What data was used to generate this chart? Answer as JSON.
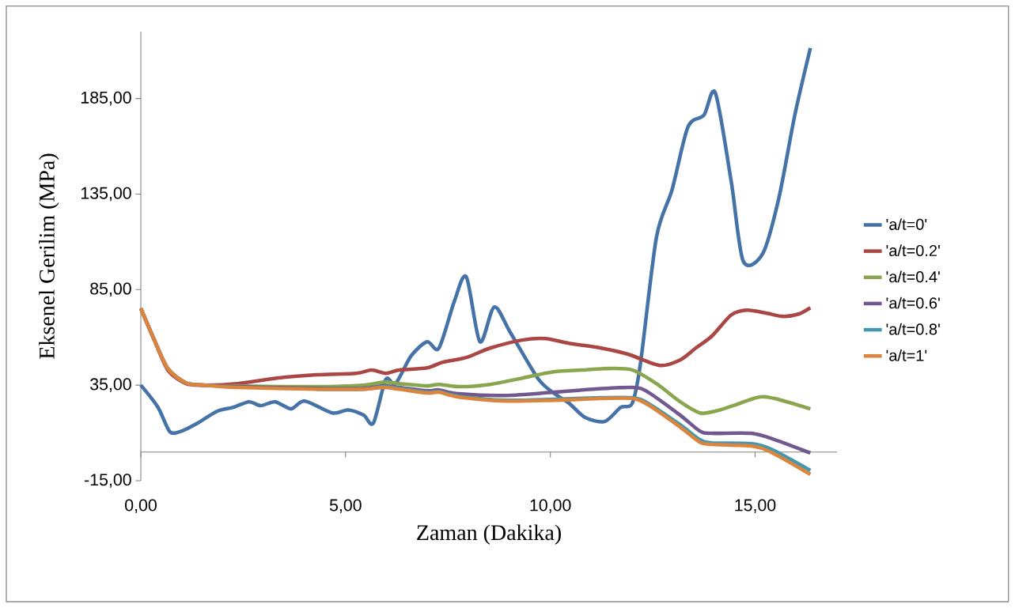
{
  "chart_data": {
    "type": "line",
    "xlabel": "Zaman (Dakika)",
    "ylabel": "Eksenel Gerilim (MPa)",
    "xlim": [
      0,
      17
    ],
    "ylim": [
      -15,
      220
    ],
    "xticks": [
      {
        "value": 0,
        "label": "0,00"
      },
      {
        "value": 5,
        "label": "5,00"
      },
      {
        "value": 10,
        "label": "10,00"
      },
      {
        "value": 15,
        "label": "15,00"
      }
    ],
    "yticks": [
      {
        "value": -15,
        "label": "-15,00"
      },
      {
        "value": 35,
        "label": "35,00"
      },
      {
        "value": 85,
        "label": "85,00"
      },
      {
        "value": 135,
        "label": "135,00"
      },
      {
        "value": 185,
        "label": "185,00"
      }
    ],
    "legend": "right",
    "series": [
      {
        "name": "'a/t=0'",
        "color": "#4572a7",
        "x": [
          0,
          0.42,
          0.71,
          1.0,
          1.39,
          1.87,
          2.26,
          2.64,
          2.93,
          3.28,
          3.67,
          4.0,
          4.67,
          5.06,
          5.44,
          5.68,
          5.98,
          6.22,
          6.6,
          6.99,
          7.28,
          7.66,
          7.95,
          8.28,
          8.63,
          9.02,
          9.69,
          10.08,
          10.46,
          10.85,
          11.33,
          11.72,
          12.0,
          12.2,
          12.59,
          12.97,
          13.36,
          13.75,
          14.03,
          14.42,
          14.71,
          15.19,
          15.58,
          15.97,
          16.35
        ],
        "values": [
          35.0,
          23.4,
          10.6,
          11.0,
          15.2,
          21.4,
          23.4,
          26.3,
          24.3,
          26.3,
          22.6,
          26.7,
          20.5,
          22.0,
          19.3,
          15.2,
          37.9,
          35.8,
          50.3,
          57.7,
          54.4,
          79.2,
          91.6,
          57.7,
          75.9,
          62.7,
          38.7,
          30.9,
          25.5,
          18.1,
          16.0,
          23.4,
          25.5,
          46.2,
          112.3,
          137.1,
          170.1,
          176.3,
          187.9,
          141.2,
          99.9,
          104.0,
          132.9,
          176.3,
          211.4
        ]
      },
      {
        "name": "'a/t=0.2'",
        "color": "#aa4643",
        "x": [
          0,
          0.33,
          0.66,
          1.1,
          1.58,
          2.36,
          3.32,
          4.29,
          5.25,
          5.64,
          5.98,
          6.31,
          6.99,
          7.37,
          7.95,
          8.53,
          9.31,
          9.88,
          10.46,
          11.24,
          11.91,
          12.68,
          13.17,
          13.55,
          13.94,
          14.42,
          14.81,
          15.29,
          15.68,
          16.06,
          16.35
        ],
        "values": [
          75.1,
          58.6,
          42.9,
          35.8,
          35.0,
          35.8,
          38.7,
          40.4,
          41.2,
          42.9,
          41.2,
          42.9,
          44.1,
          47.0,
          49.5,
          54.4,
          58.6,
          59.4,
          56.9,
          54.4,
          51.1,
          45.3,
          48.2,
          54.4,
          60.6,
          71.8,
          74.3,
          72.6,
          71.0,
          72.2,
          75.5
        ]
      },
      {
        "name": "'a/t=0.4'",
        "color": "#89a54e",
        "x": [
          0,
          0.33,
          0.66,
          1.1,
          1.58,
          2.36,
          4.29,
          5.44,
          5.93,
          6.31,
          6.99,
          7.28,
          7.76,
          8.53,
          9.31,
          10.08,
          10.75,
          11.43,
          12.01,
          12.59,
          13.17,
          13.65,
          14.03,
          14.52,
          15.09,
          15.48,
          16.35
        ],
        "values": [
          75.1,
          58.6,
          43.7,
          36.2,
          35.0,
          34.6,
          34.2,
          35.0,
          36.6,
          35.8,
          34.6,
          35.4,
          34.2,
          35.4,
          38.7,
          42.0,
          42.9,
          43.7,
          42.9,
          35.8,
          26.3,
          20.5,
          21.4,
          24.7,
          28.8,
          28.0,
          22.6
        ]
      },
      {
        "name": "'a/t=0.6'",
        "color": "#71588f",
        "x": [
          0,
          0.33,
          0.66,
          1.1,
          1.58,
          2.36,
          4.29,
          5.44,
          5.93,
          6.31,
          6.99,
          7.28,
          7.76,
          8.92,
          10.08,
          11.04,
          12.01,
          12.39,
          13.17,
          13.65,
          13.94,
          14.9,
          15.48,
          16.35
        ],
        "values": [
          75.1,
          58.6,
          43.7,
          36.2,
          35.0,
          34.2,
          33.3,
          33.3,
          34.6,
          33.8,
          32.1,
          32.5,
          30.5,
          29.6,
          31.3,
          32.9,
          33.8,
          31.3,
          19.3,
          11.0,
          9.8,
          9.8,
          6.5,
          -0.5
        ]
      },
      {
        "name": "'a/t=0.8'",
        "color": "#4198af",
        "x": [
          4.29,
          5.44,
          5.93,
          6.31,
          6.99,
          7.28,
          7.76,
          8.92,
          10.08,
          11.24,
          12.01,
          12.39,
          13.17,
          13.65,
          13.94,
          14.9,
          15.39,
          16.35
        ],
        "values": [
          32.9,
          32.9,
          34.2,
          33.3,
          31.3,
          31.7,
          29.2,
          27.1,
          27.6,
          28.4,
          28.4,
          25.5,
          14.3,
          6.5,
          4.8,
          4.4,
          1.5,
          -9.6
        ]
      },
      {
        "name": "'a/t=1'",
        "color": "#db843d",
        "x": [
          0,
          0.33,
          0.66,
          1.1,
          1.58,
          2.36,
          4.29,
          5.44,
          5.93,
          6.31,
          6.99,
          7.28,
          7.76,
          8.92,
          10.08,
          11.24,
          12.01,
          12.39,
          13.17,
          13.65,
          13.94,
          14.9,
          15.39,
          16.35
        ],
        "values": [
          75.1,
          58.6,
          43.7,
          36.2,
          35.0,
          33.8,
          32.9,
          32.9,
          33.8,
          32.9,
          30.9,
          31.3,
          28.8,
          26.7,
          27.1,
          28.0,
          28.0,
          24.7,
          13.1,
          5.2,
          4.0,
          3.2,
          -0.1,
          -11.7
        ]
      }
    ]
  }
}
